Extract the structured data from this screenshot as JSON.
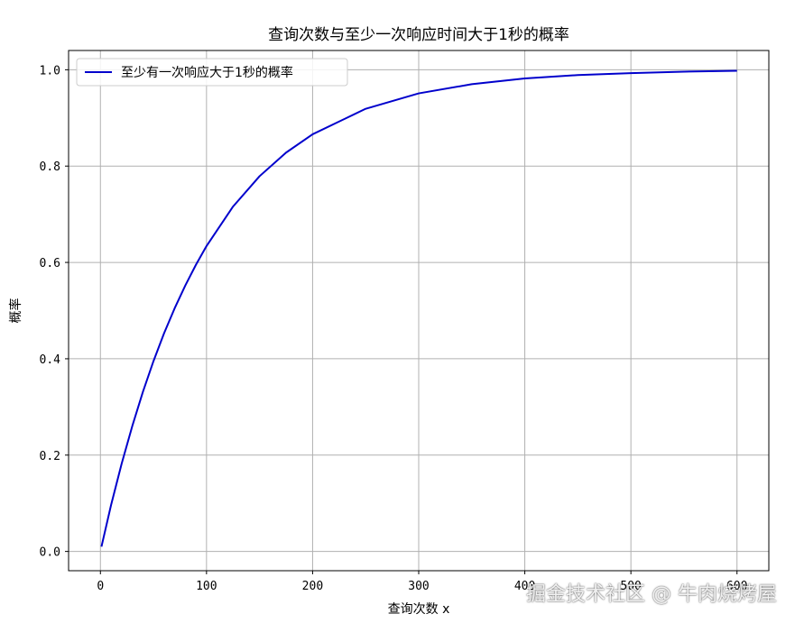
{
  "chart_data": {
    "type": "line",
    "title": "查询次数与至少一次响应时间大于1秒的概率",
    "xlabel": "查询次数 x",
    "ylabel": "概率",
    "xlim": [
      -30,
      630
    ],
    "ylim": [
      -0.04,
      1.04
    ],
    "xticks": [
      0,
      100,
      200,
      300,
      400,
      500,
      600
    ],
    "yticks": [
      0.0,
      0.2,
      0.4,
      0.6,
      0.8,
      1.0
    ],
    "ytick_labels": [
      "0.0",
      "0.2",
      "0.4",
      "0.6",
      "0.8",
      "1.0"
    ],
    "grid": true,
    "legend_position": "top-left",
    "series": [
      {
        "name": "至少有一次响应大于1秒的概率",
        "color": "#0000cc",
        "x": [
          1,
          10,
          20,
          30,
          40,
          50,
          60,
          70,
          80,
          90,
          100,
          125,
          150,
          175,
          200,
          250,
          300,
          350,
          400,
          450,
          500,
          550,
          600
        ],
        "y": [
          0.01,
          0.096,
          0.182,
          0.26,
          0.331,
          0.395,
          0.453,
          0.505,
          0.552,
          0.595,
          0.634,
          0.716,
          0.779,
          0.828,
          0.866,
          0.919,
          0.951,
          0.97,
          0.982,
          0.989,
          0.993,
          0.996,
          0.998
        ]
      }
    ]
  },
  "watermark": "掘金技术社区 @ 牛肉烧烤屋"
}
